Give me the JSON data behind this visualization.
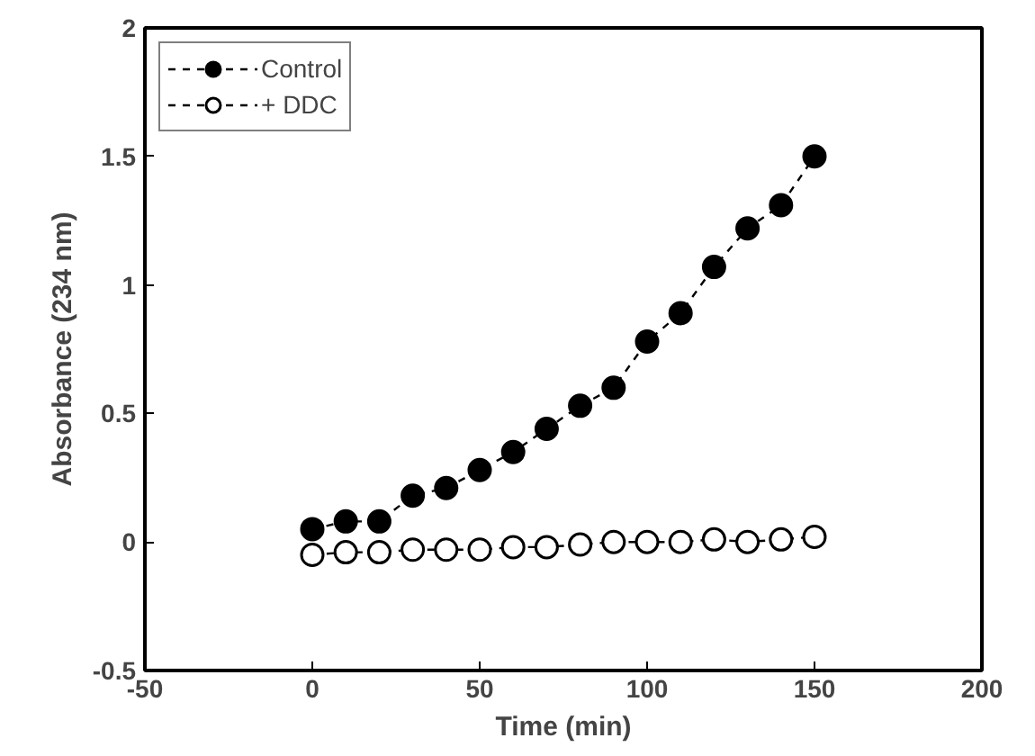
{
  "chart_data": {
    "type": "line",
    "xlabel": "Time (min)",
    "ylabel": "Absorbance (234 nm)",
    "x": [
      0,
      10,
      20,
      30,
      40,
      50,
      60,
      70,
      80,
      90,
      100,
      110,
      120,
      130,
      140,
      150
    ],
    "series": [
      {
        "name": "Control",
        "color": "#000000",
        "marker": "circle",
        "values": [
          0.05,
          0.08,
          0.08,
          0.18,
          0.21,
          0.28,
          0.35,
          0.44,
          0.53,
          0.6,
          0.78,
          0.89,
          1.07,
          1.22,
          1.31,
          1.5
        ]
      },
      {
        "name": "+ DDC",
        "color": "#000000",
        "marker": "circle",
        "values": [
          -0.05,
          -0.04,
          -0.04,
          -0.03,
          -0.03,
          -0.03,
          -0.02,
          -0.02,
          -0.01,
          0,
          0,
          0,
          0.01,
          0,
          0.01,
          0.02
        ]
      }
    ],
    "xlim": [
      -50,
      200
    ],
    "ylim": [
      -0.5,
      2
    ],
    "xticks": [
      -50,
      0,
      50,
      100,
      150,
      200
    ],
    "yticks": [
      -0.5,
      0,
      0.5,
      1,
      1.5,
      2
    ],
    "grid": false,
    "legend": "top left",
    "line_style": "dashed"
  }
}
